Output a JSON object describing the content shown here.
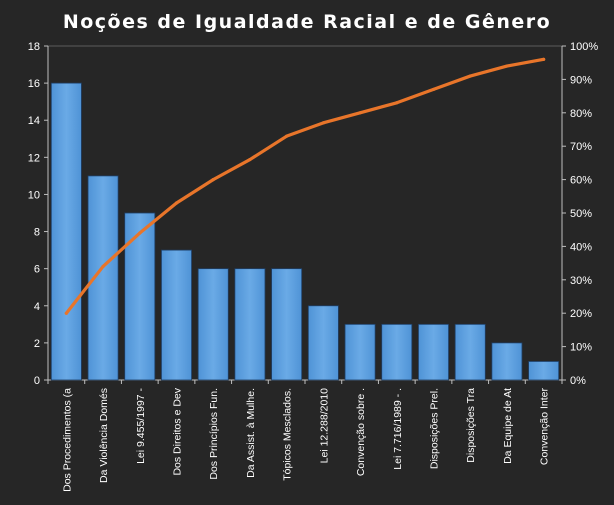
{
  "chart_data": {
    "type": "bar",
    "title": "Noções de Igualdade Racial e de Gênero",
    "xlabel": "",
    "ylabel": "",
    "categories": [
      "Dos Procedimentos (a",
      "Da Violência Domés",
      "Lei 9.455/1997 -",
      "Dos Direitos e Dev",
      "Dos Princípios Fun.",
      "Da Assist. à Mulhe.",
      "Tópicos Mesclados.",
      "Lei 12.288/2010",
      "Convenção sobre .",
      "Lei 7.716/1989 - .",
      "Disposições Prel.",
      "Disposições Tra",
      "Da Equipe de At",
      "Convenção Inter"
    ],
    "series": [
      {
        "type": "bar",
        "values": [
          16,
          11,
          9,
          7,
          6,
          6,
          6,
          4,
          3,
          3,
          3,
          3,
          2,
          1
        ]
      },
      {
        "type": "line",
        "axis": "secondary",
        "values": [
          20,
          34,
          44,
          53,
          60,
          66,
          73,
          77,
          80,
          83,
          87,
          91,
          94,
          96
        ]
      }
    ],
    "ylim": [
      0,
      18
    ],
    "yticks": [
      "0",
      "2",
      "4",
      "6",
      "8",
      "10",
      "12",
      "14",
      "16",
      "18"
    ],
    "y2lim": [
      0,
      100
    ],
    "y2ticks": [
      "0%",
      "10%",
      "20%",
      "30%",
      "40%",
      "50%",
      "60%",
      "70%",
      "80%",
      "90%",
      "100%"
    ],
    "grid": false,
    "legend": "none",
    "colors": {
      "bar": "#4F93D6",
      "bar_light": "#6AAAE6",
      "bar_border": "#1F3F66",
      "line": "#E8752A",
      "axis": "#BFBFBF",
      "background": "#262626",
      "plot_border": "#808080"
    }
  }
}
